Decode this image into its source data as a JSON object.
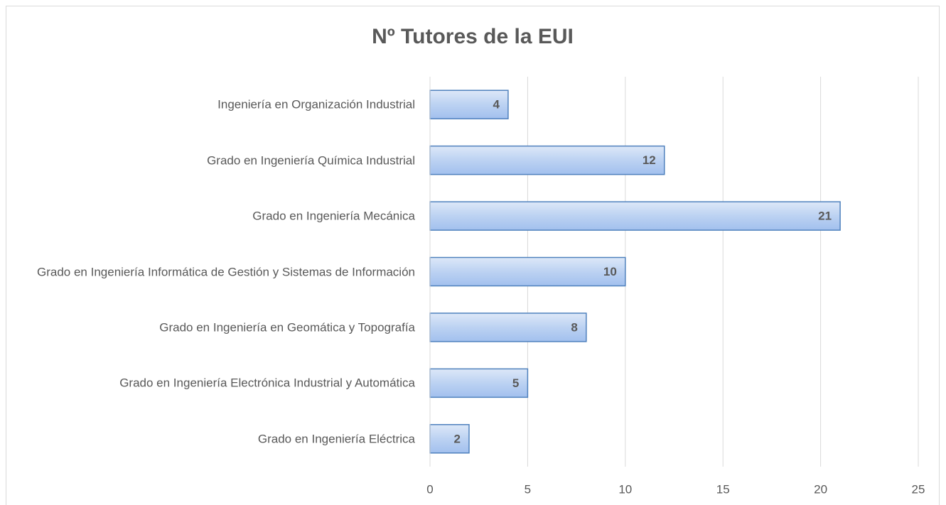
{
  "chart_data": {
    "type": "barh",
    "title": "Nº Tutores de la EUI",
    "categories": [
      "Ingeniería en Organización Industrial",
      "Grado en Ingeniería Química Industrial",
      "Grado en Ingeniería Mecánica",
      "Grado en Ingeniería Informática de Gestión y Sistemas de Información",
      "Grado en Ingeniería en Geomática y Topografía",
      "Grado en Ingeniería Electrónica Industrial y Automática",
      "Grado en Ingeniería Eléctrica"
    ],
    "values": [
      4,
      12,
      21,
      10,
      8,
      5,
      2
    ],
    "color": "#4f81bd",
    "xlim": [
      0,
      25
    ],
    "xticks": [
      0,
      5,
      10,
      15,
      20,
      25
    ],
    "grid": true
  }
}
